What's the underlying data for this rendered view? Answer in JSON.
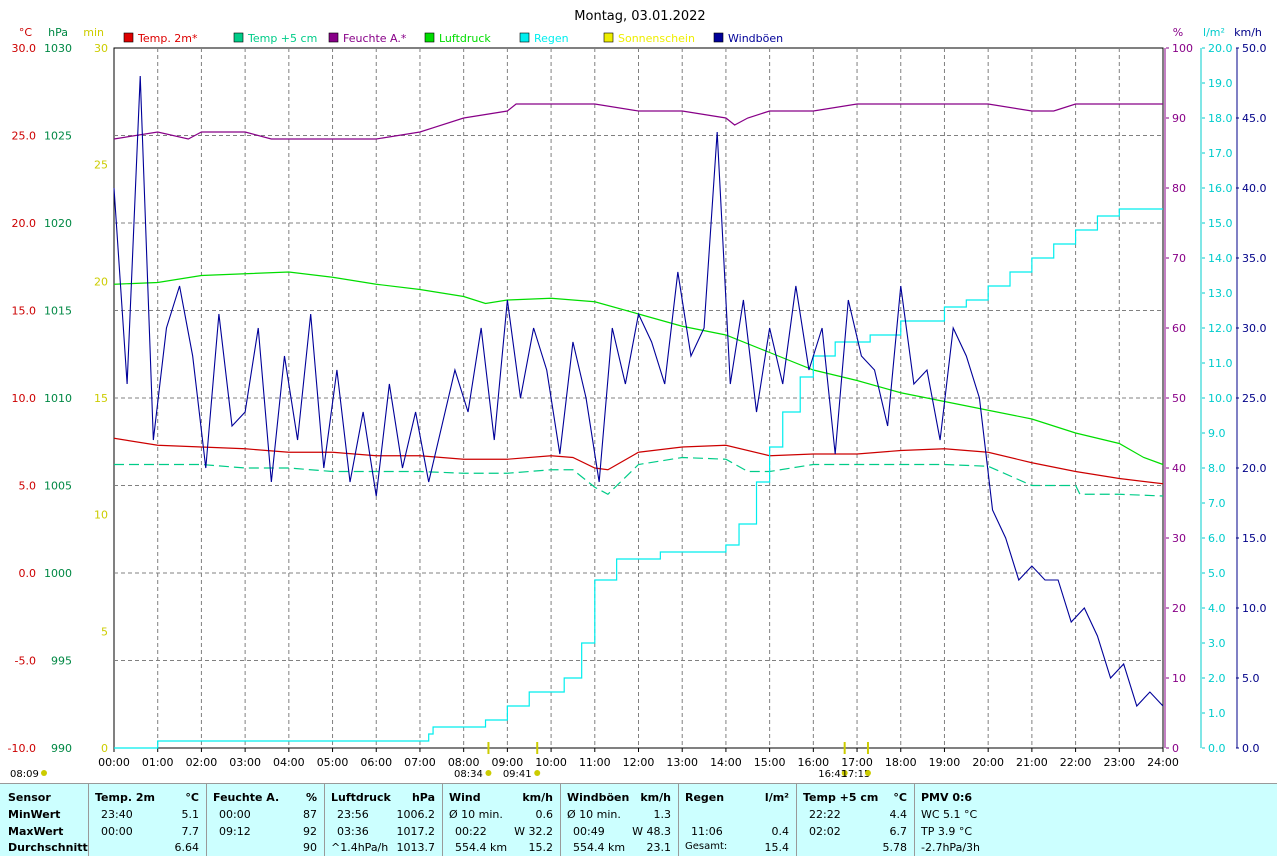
{
  "chart_data": {
    "type": "line",
    "title": "Montag, 03.01.2022",
    "x_ticks": [
      "00:00",
      "01:00",
      "02:00",
      "03:00",
      "04:00",
      "05:00",
      "06:00",
      "07:00",
      "08:00",
      "09:00",
      "10:00",
      "11:00",
      "12:00",
      "13:00",
      "14:00",
      "15:00",
      "16:00",
      "17:00",
      "18:00",
      "19:00",
      "20:00",
      "21:00",
      "22:00",
      "23:00",
      "24:00"
    ],
    "axes": {
      "temp": {
        "unit": "°C",
        "range": [
          -10,
          30
        ],
        "ticks": [
          "30.0",
          "25.0",
          "20.0",
          "15.0",
          "10.0",
          "5.0",
          "0.0",
          "-5.0",
          "-10.0"
        ],
        "color": "#cc0000"
      },
      "pressure": {
        "unit": "hPa",
        "range": [
          990,
          1030
        ],
        "ticks": [
          "1030",
          "1025",
          "1020",
          "1015",
          "1010",
          "1005",
          "1000",
          "995",
          "990"
        ],
        "color": "#008844"
      },
      "sunshine": {
        "unit": "min",
        "range": [
          0,
          30
        ],
        "ticks": [
          "30",
          "25",
          "20",
          "15",
          "10",
          "5",
          "0"
        ],
        "color": "#cccc00"
      },
      "humidity": {
        "unit": "%",
        "range": [
          0,
          100
        ],
        "ticks": [
          "100",
          "90",
          "80",
          "70",
          "60",
          "50",
          "40",
          "30",
          "20",
          "10",
          "0"
        ],
        "color": "#880088"
      },
      "rain": {
        "unit": "l/m²",
        "range": [
          0,
          20
        ],
        "ticks": [
          "20.0",
          "19.0",
          "18.0",
          "17.0",
          "16.0",
          "15.0",
          "14.0",
          "13.0",
          "12.0",
          "11.0",
          "10.0",
          "9.0",
          "8.0",
          "7.0",
          "6.0",
          "5.0",
          "4.0",
          "3.0",
          "2.0",
          "1.0",
          "0.0"
        ],
        "color": "#00cccc"
      },
      "wind": {
        "unit": "km/h",
        "range": [
          0,
          50
        ],
        "ticks": [
          "50.0",
          "45.0",
          "40.0",
          "35.0",
          "30.0",
          "25.0",
          "20.0",
          "15.0",
          "10.0",
          "5.0",
          "0.0"
        ],
        "color": "#000088"
      }
    },
    "legend": [
      {
        "name": "Temp. 2m*",
        "color": "#dd0000"
      },
      {
        "name": "Temp +5 cm",
        "color": "#00cc88"
      },
      {
        "name": "Feuchte A.*",
        "color": "#880088"
      },
      {
        "name": "Luftdruck",
        "color": "#00dd00"
      },
      {
        "name": "Regen",
        "color": "#00eeee"
      },
      {
        "name": "Sonnenschein",
        "color": "#eeee00"
      },
      {
        "name": "Windböen",
        "color": "#000099"
      }
    ],
    "series": [
      {
        "name": "Temp. 2m*",
        "axis": "temp",
        "x": [
          0,
          1,
          2,
          3,
          4,
          5,
          6,
          7,
          8,
          9,
          10,
          10.5,
          11,
          11.3,
          12,
          13,
          14,
          15,
          16,
          17,
          18,
          19,
          20,
          21,
          22,
          23,
          24
        ],
        "y": [
          7.7,
          7.3,
          7.2,
          7.1,
          6.9,
          6.9,
          6.7,
          6.7,
          6.5,
          6.5,
          6.7,
          6.6,
          6.0,
          5.9,
          6.9,
          7.2,
          7.3,
          6.7,
          6.8,
          6.8,
          7.0,
          7.1,
          6.9,
          6.3,
          5.8,
          5.4,
          5.1
        ]
      },
      {
        "name": "Temp +5 cm",
        "axis": "temp",
        "x": [
          0,
          1,
          2,
          3,
          4,
          5,
          6,
          7,
          8,
          9,
          10,
          10.5,
          11,
          11.3,
          12,
          13,
          14,
          14.5,
          15,
          16,
          17,
          18,
          19,
          20,
          21,
          22,
          22.1,
          23,
          24
        ],
        "y": [
          6.2,
          6.2,
          6.2,
          6.0,
          6.0,
          5.8,
          5.8,
          5.8,
          5.7,
          5.7,
          5.9,
          5.9,
          4.9,
          4.5,
          6.2,
          6.6,
          6.5,
          5.8,
          5.8,
          6.2,
          6.2,
          6.2,
          6.2,
          6.1,
          5.0,
          5.0,
          4.5,
          4.5,
          4.4
        ]
      },
      {
        "name": "Feuchte A.*",
        "axis": "humidity",
        "x": [
          0,
          1,
          1.7,
          2,
          3,
          3.6,
          4,
          5,
          6,
          7,
          8,
          9,
          9.2,
          10,
          11,
          12,
          13,
          14,
          14.2,
          14.5,
          15,
          16,
          17,
          18,
          19,
          20,
          21,
          21.5,
          22,
          23,
          24
        ],
        "y": [
          87,
          88,
          87,
          88,
          88,
          87,
          87,
          87,
          87,
          88,
          90,
          91,
          92,
          92,
          92,
          91,
          91,
          90,
          89,
          90,
          91,
          91,
          92,
          92,
          92,
          92,
          91,
          91,
          92,
          92,
          92
        ]
      },
      {
        "name": "Luftdruck",
        "axis": "pressure",
        "x": [
          0,
          1,
          2,
          3,
          4,
          5,
          6,
          7,
          8,
          8.5,
          9,
          10,
          11,
          12,
          13,
          14,
          15,
          16,
          17,
          18,
          19,
          20,
          21,
          22,
          23,
          23.56,
          24
        ],
        "y": [
          1016.5,
          1016.6,
          1017.0,
          1017.1,
          1017.2,
          1016.9,
          1016.5,
          1016.2,
          1015.8,
          1015.4,
          1015.6,
          1015.7,
          1015.5,
          1014.8,
          1014.1,
          1013.6,
          1012.6,
          1011.6,
          1011.0,
          1010.3,
          1009.8,
          1009.3,
          1008.8,
          1008.0,
          1007.4,
          1006.6,
          1006.2
        ]
      },
      {
        "name": "Regen",
        "axis": "rain",
        "x": [
          0,
          0.8,
          1,
          7,
          7.2,
          7.3,
          8,
          8.5,
          9,
          9.5,
          10,
          10.3,
          10.7,
          11,
          11.5,
          12,
          12.5,
          13,
          13.5,
          14,
          14.3,
          14.7,
          15,
          15.3,
          15.7,
          16,
          16.5,
          17,
          17.3,
          18,
          18.5,
          19,
          19.5,
          20,
          20.5,
          21,
          21.5,
          22,
          22.5,
          23,
          24
        ],
        "y": [
          0,
          0,
          0.2,
          0.2,
          0.4,
          0.6,
          0.6,
          0.8,
          1.2,
          1.6,
          1.6,
          2.0,
          3.0,
          4.8,
          5.4,
          5.4,
          5.6,
          5.6,
          5.6,
          5.8,
          6.4,
          7.6,
          8.6,
          9.6,
          10.6,
          11.2,
          11.6,
          11.6,
          11.8,
          12.2,
          12.2,
          12.6,
          12.8,
          13.2,
          13.6,
          14.0,
          14.4,
          14.8,
          15.2,
          15.4,
          15.4
        ]
      }
    ],
    "wind_gusts": {
      "name": "Windböen",
      "axis": "wind",
      "x": [
        0,
        0.3,
        0.6,
        0.9,
        1.2,
        1.5,
        1.8,
        2.1,
        2.4,
        2.7,
        3,
        3.3,
        3.6,
        3.9,
        4.2,
        4.5,
        4.8,
        5.1,
        5.4,
        5.7,
        6,
        6.3,
        6.6,
        6.9,
        7.2,
        7.5,
        7.8,
        8.1,
        8.4,
        8.7,
        9,
        9.3,
        9.6,
        9.9,
        10.2,
        10.5,
        10.8,
        11.1,
        11.4,
        11.7,
        12,
        12.3,
        12.6,
        12.9,
        13.2,
        13.5,
        13.8,
        14.1,
        14.4,
        14.7,
        15,
        15.3,
        15.6,
        15.9,
        16.2,
        16.5,
        16.8,
        17.1,
        17.4,
        17.7,
        18,
        18.3,
        18.6,
        18.9,
        19.2,
        19.5,
        19.8,
        20.1,
        20.4,
        20.7,
        21,
        21.3,
        21.6,
        21.9,
        22.2,
        22.5,
        22.8,
        23.1,
        23.4,
        23.7,
        24
      ],
      "y": [
        40,
        26,
        48,
        22,
        30,
        33,
        28,
        20,
        31,
        23,
        24,
        30,
        19,
        28,
        22,
        31,
        20,
        27,
        19,
        24,
        18,
        26,
        20,
        24,
        19,
        23,
        27,
        24,
        30,
        22,
        32,
        25,
        30,
        27,
        21,
        29,
        25,
        19,
        30,
        26,
        31,
        29,
        26,
        34,
        28,
        30,
        44,
        26,
        32,
        24,
        30,
        26,
        33,
        27,
        30,
        21,
        32,
        28,
        27,
        23,
        33,
        26,
        27,
        22,
        30,
        28,
        25,
        17,
        15,
        12,
        13,
        12,
        12,
        9,
        10,
        8,
        5,
        6,
        3,
        4,
        3
      ]
    },
    "time_markers": [
      {
        "label": "08:34",
        "x": 8.567,
        "color": "#cccc00"
      },
      {
        "label": "09:41",
        "x": 9.683,
        "color": "#cccc00"
      },
      {
        "label": "16:43",
        "x": 16.717,
        "color": "#cccc00"
      },
      {
        "label": "17:15",
        "x": 17.25,
        "color": "#cccc00"
      }
    ],
    "bottom_left_label": "08:09",
    "grid": true,
    "legend_position": "top"
  },
  "stats": {
    "sensor": {
      "hdr": "Sensor",
      "rows": [
        "MinWert",
        "MaxWert",
        "Durchschnitt"
      ]
    },
    "temp2m": {
      "hdr": "Temp. 2m",
      "unit": "°C",
      "min_time": "23:40",
      "min": "5.1",
      "max_time": "00:00",
      "max": "7.7",
      "avg": "6.64"
    },
    "feuchte": {
      "hdr": "Feuchte A.",
      "unit": "%",
      "min_time": "00:00",
      "min": "87",
      "max_time": "09:12",
      "max": "92",
      "avg": "90"
    },
    "luftdruck": {
      "hdr": "Luftdruck",
      "unit": "hPa",
      "min_time": "23:56",
      "min": "1006.2",
      "max_time": "03:36",
      "max": "1017.2",
      "trend": "^1.4hPa/h",
      "avg": "1013.7"
    },
    "wind": {
      "hdr": "Wind",
      "unit": "km/h",
      "r1a": "Ø 10 min.",
      "r1b": "0.6",
      "r2a": "00:22",
      "r2b": "W 32.2",
      "r3a": "554.4 km",
      "r3b": "15.2"
    },
    "windboen": {
      "hdr": "Windböen",
      "unit": "km/h",
      "r1a": "Ø 10 min.",
      "r1b": "1.3",
      "r2a": "00:49",
      "r2b": "W 48.3",
      "r3a": "554.4 km",
      "r3b": "23.1"
    },
    "regen": {
      "hdr": "Regen",
      "unit": "l/m²",
      "r2a": "11:06",
      "r2b": "0.4",
      "r3a": "Gesamt:",
      "r3b": "15.4"
    },
    "temp5": {
      "hdr": "Temp +5 cm",
      "unit": "°C",
      "min_time": "22:22",
      "min": "4.4",
      "max_time": "02:02",
      "max": "6.7",
      "avg": "5.78"
    },
    "pmv": {
      "hdr": "PMV 0:6",
      "r1": "WC 5.1 °C",
      "r2": "TP 3.9 °C",
      "r3": "-2.7hPa/3h"
    }
  }
}
